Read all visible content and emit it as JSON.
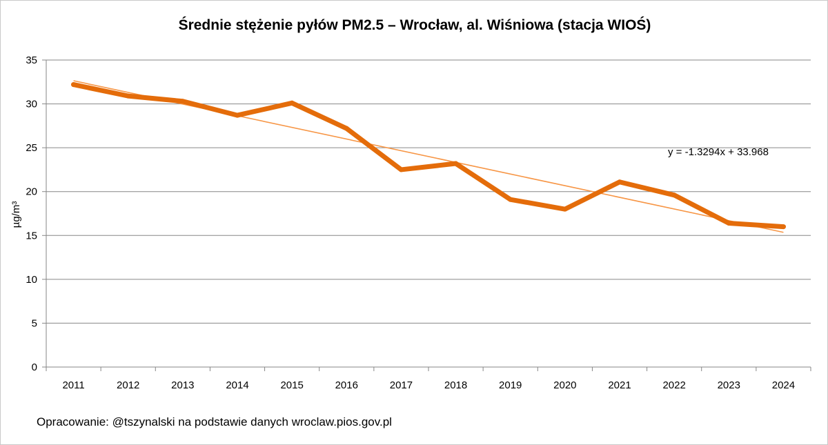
{
  "chart_data": {
    "type": "line",
    "title": "Średnie stężenie pyłów PM2.5 – Wrocław, al. Wiśniowa (stacja WIOŚ)",
    "xlabel": "",
    "ylabel": "µg/m³",
    "categories": [
      "2011",
      "2012",
      "2013",
      "2014",
      "2015",
      "2016",
      "2017",
      "2018",
      "2019",
      "2020",
      "2021",
      "2022",
      "2023",
      "2024"
    ],
    "series": [
      {
        "values": [
          32.2,
          30.9,
          30.3,
          28.7,
          30.1,
          27.2,
          22.5,
          23.2,
          19.1,
          18.0,
          21.1,
          19.6,
          16.4,
          16.0
        ]
      }
    ],
    "ylim": [
      0,
      35
    ],
    "yticks": [
      0,
      5,
      10,
      15,
      20,
      25,
      30,
      35
    ],
    "grid": true,
    "legend": "none",
    "trendline": {
      "type": "linear",
      "slope": -1.3294,
      "intercept": 33.968,
      "label": "y = -1.3294x + 33.968"
    },
    "source_note": "Opracowanie: @tszynalski na podstawie danych wroclaw.pios.gov.pl",
    "colors": {
      "series": "#E46C0A",
      "trend": "#F79646",
      "grid": "#868686",
      "axis": "#868686"
    }
  }
}
